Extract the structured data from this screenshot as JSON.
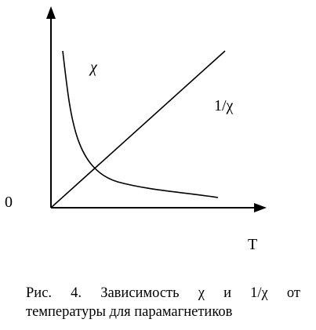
{
  "diagram": {
    "labels": {
      "chi": "χ",
      "inverse_chi": "1/χ",
      "origin": "0",
      "x_axis": "T"
    }
  },
  "caption": {
    "lines": [
      "Рис. 4. Зависимость χ и 1/χ от",
      "температуры для парамагнетиков"
    ]
  }
}
